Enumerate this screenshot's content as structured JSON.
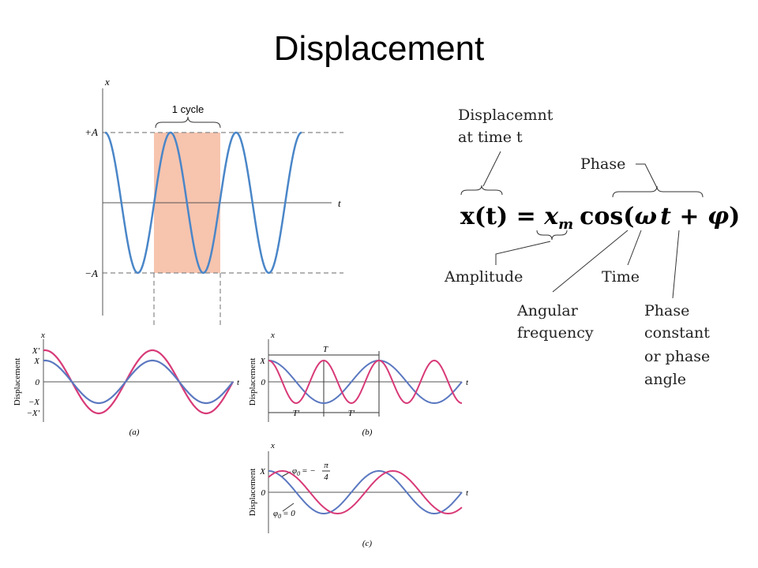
{
  "title": "Displacement",
  "cycle_figure": {
    "axis_x": "x",
    "axis_t": "t",
    "plus_a": "+A",
    "minus_a": "−A",
    "cycle": "1 cycle"
  },
  "equation_figure": {
    "displacement_label": [
      "Displacemnt",
      "at time t"
    ],
    "phase": "Phase",
    "equation": {
      "lhs": "x(t)",
      "eq": "=",
      "amp": "x",
      "amp_sub": "m",
      "cos": "cos(",
      "omega": "ω",
      "t": "t",
      "plus": "+",
      "phi": "φ",
      "close": ")"
    },
    "amplitude": "Amplitude",
    "time": "Time",
    "angular": [
      "Angular",
      "frequency"
    ],
    "phase_constant": [
      "Phase",
      "constant",
      "or phase",
      "angle"
    ]
  },
  "panels": {
    "a": {
      "axis_x": "x",
      "axis_t": "t",
      "y_label": "Displacement",
      "ticks": [
        "X'",
        "X",
        "0",
        "−X",
        "−X'"
      ],
      "caption": "(a)"
    },
    "b": {
      "axis_x": "x",
      "axis_t": "t",
      "y_label": "Displacement",
      "ticks": [
        "X",
        "0"
      ],
      "period": "T",
      "period_prime": [
        "T'",
        "T'"
      ],
      "caption": "(b)"
    },
    "c": {
      "axis_x": "x",
      "axis_t": "t",
      "y_label": "Displacement",
      "ticks": [
        "X",
        "0"
      ],
      "phase_a": {
        "sym": "φ",
        "sub": "0",
        "rel": "= −",
        "num": "π",
        "den": "4"
      },
      "phase_b": {
        "sym": "φ",
        "sub": "0",
        "rel": "= 0"
      },
      "caption": "(c)"
    }
  }
}
